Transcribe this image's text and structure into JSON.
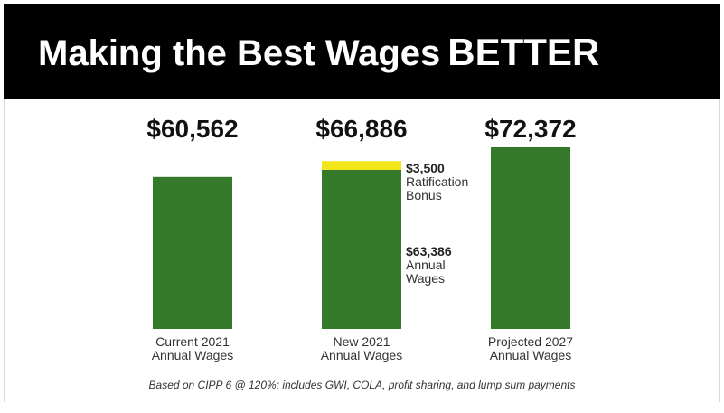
{
  "title": {
    "main": "Making the Best Wages",
    "emphasis": "BETTER"
  },
  "footnote": "Based on CIPP 6 @ 120%; includes GWI, COLA, profit sharing, and lump sum payments",
  "colors": {
    "bar_green": "#347a2a",
    "bonus_yellow": "#f2e51a",
    "header_bg": "#000000",
    "title_text": "#ffffff"
  },
  "chart_data": {
    "type": "bar",
    "stacked": true,
    "ylim": [
      0,
      72372
    ],
    "grid": false,
    "legend": "none",
    "categories": [
      [
        "Current 2021",
        "Annual Wages"
      ],
      [
        "New 2021",
        "Annual Wages"
      ],
      [
        "Projected 2027",
        "Annual Wages"
      ]
    ],
    "totals": [
      "$60,562",
      "$66,886",
      "$72,372"
    ],
    "total_values": [
      60562,
      66886,
      72372
    ],
    "series": [
      {
        "name": "Annual Wages",
        "color": "#347a2a",
        "values": [
          60562,
          63386,
          72372
        ],
        "inline_label": [
          "$63,386",
          "Annual",
          "Wages"
        ],
        "inline_label_bar": 1
      },
      {
        "name": "Ratification Bonus",
        "color": "#f2e51a",
        "values": [
          0,
          3500,
          0
        ],
        "inline_label": [
          "$3,500",
          "Ratification",
          "Bonus"
        ],
        "inline_label_bar": 1
      }
    ]
  }
}
